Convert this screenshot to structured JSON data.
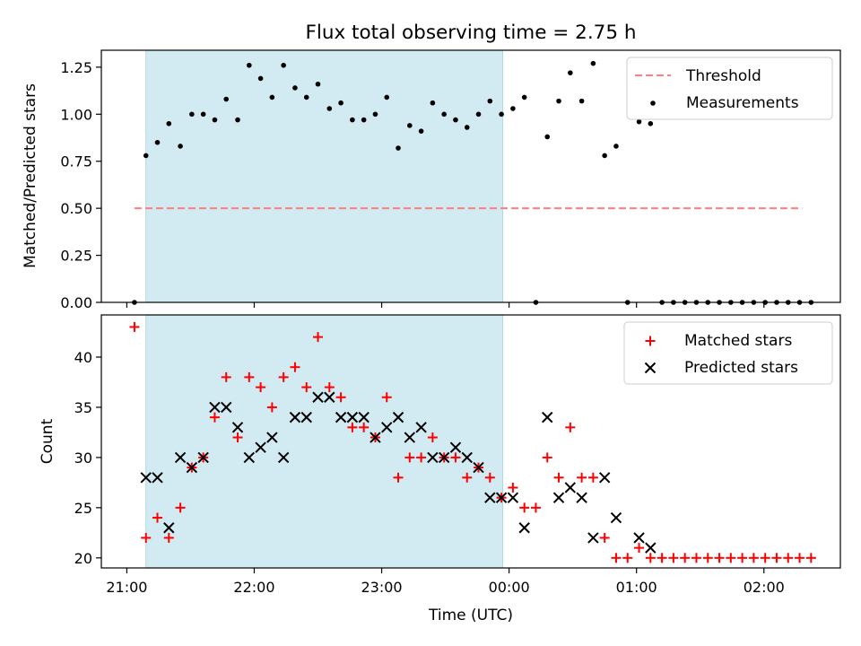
{
  "title": "Flux total observing time = 2.75 h",
  "colors": {
    "observing_span": "#add8e6",
    "threshold": "#ff7f7f",
    "measurements": "#000000",
    "matched": "#ff0000",
    "predicted": "#000000"
  },
  "chart_data": [
    {
      "type": "scatter",
      "title": "Flux total observing time = 2.75 h",
      "xlabel": "",
      "ylabel": "Matched/Predicted stars",
      "x_unit": "hours after 21:00 UTC",
      "xlim": [
        -0.2,
        5.6
      ],
      "ylim": [
        0,
        1.34
      ],
      "yticks": [
        0.0,
        0.25,
        0.5,
        0.75,
        1.0,
        1.25
      ],
      "ytick_labels": [
        "0.00",
        "0.25",
        "0.50",
        "0.75",
        "1.00",
        "1.25"
      ],
      "grid": false,
      "legend_position": "top-right",
      "shaded_span_hours": [
        0.15,
        2.95
      ],
      "threshold": {
        "name": "Threshold",
        "value": 0.5,
        "x_range_hours": [
          0.06,
          5.3
        ]
      },
      "series": [
        {
          "name": "Measurements",
          "points": [
            [
              0.06,
              0.0
            ],
            [
              0.15,
              0.78
            ],
            [
              0.24,
              0.85
            ],
            [
              0.33,
              0.95
            ],
            [
              0.42,
              0.83
            ],
            [
              0.51,
              1.0
            ],
            [
              0.6,
              1.0
            ],
            [
              0.69,
              0.97
            ],
            [
              0.78,
              1.08
            ],
            [
              0.87,
              0.97
            ],
            [
              0.96,
              1.26
            ],
            [
              1.05,
              1.19
            ],
            [
              1.14,
              1.09
            ],
            [
              1.23,
              1.26
            ],
            [
              1.32,
              1.14
            ],
            [
              1.41,
              1.09
            ],
            [
              1.5,
              1.16
            ],
            [
              1.59,
              1.03
            ],
            [
              1.68,
              1.06
            ],
            [
              1.77,
              0.97
            ],
            [
              1.86,
              0.97
            ],
            [
              1.95,
              1.0
            ],
            [
              2.04,
              1.09
            ],
            [
              2.13,
              0.82
            ],
            [
              2.22,
              0.94
            ],
            [
              2.31,
              0.91
            ],
            [
              2.4,
              1.06
            ],
            [
              2.49,
              1.0
            ],
            [
              2.58,
              0.97
            ],
            [
              2.67,
              0.93
            ],
            [
              2.76,
              1.0
            ],
            [
              2.85,
              1.07
            ],
            [
              2.94,
              1.0
            ],
            [
              3.03,
              1.03
            ],
            [
              3.12,
              1.09
            ],
            [
              3.21,
              0.0
            ],
            [
              3.3,
              0.88
            ],
            [
              3.39,
              1.07
            ],
            [
              3.48,
              1.22
            ],
            [
              3.57,
              1.07
            ],
            [
              3.66,
              1.27
            ],
            [
              3.75,
              0.78
            ],
            [
              3.84,
              0.83
            ],
            [
              3.93,
              0.0
            ],
            [
              4.02,
              0.96
            ],
            [
              4.11,
              0.95
            ],
            [
              4.2,
              0.0
            ],
            [
              4.29,
              0.0
            ],
            [
              4.38,
              0.0
            ],
            [
              4.47,
              0.0
            ],
            [
              4.56,
              0.0
            ],
            [
              4.65,
              0.0
            ],
            [
              4.74,
              0.0
            ],
            [
              4.83,
              0.0
            ],
            [
              4.92,
              0.0
            ],
            [
              5.01,
              0.0
            ],
            [
              5.1,
              0.0
            ],
            [
              5.19,
              0.0
            ],
            [
              5.28,
              0.0
            ],
            [
              5.37,
              0.0
            ]
          ]
        }
      ]
    },
    {
      "type": "scatter",
      "xlabel": "Time (UTC)",
      "ylabel": "Count",
      "x_unit": "hours after 21:00 UTC",
      "xlim": [
        -0.2,
        5.6
      ],
      "ylim": [
        19,
        44.2
      ],
      "xticks_hours": [
        0,
        1,
        2,
        3,
        4,
        5
      ],
      "xtick_labels": [
        "21:00",
        "22:00",
        "23:00",
        "00:00",
        "01:00",
        "02:00"
      ],
      "yticks": [
        20,
        25,
        30,
        35,
        40
      ],
      "ytick_labels": [
        "20",
        "25",
        "30",
        "35",
        "40"
      ],
      "grid": false,
      "legend_position": "top-right",
      "shaded_span_hours": [
        0.15,
        2.95
      ],
      "series": [
        {
          "name": "Matched stars",
          "marker": "+",
          "points": [
            [
              0.06,
              43
            ],
            [
              0.15,
              22
            ],
            [
              0.24,
              24
            ],
            [
              0.33,
              22
            ],
            [
              0.42,
              25
            ],
            [
              0.51,
              29
            ],
            [
              0.6,
              30
            ],
            [
              0.69,
              34
            ],
            [
              0.78,
              38
            ],
            [
              0.87,
              32
            ],
            [
              0.96,
              38
            ],
            [
              1.05,
              37
            ],
            [
              1.14,
              35
            ],
            [
              1.23,
              38
            ],
            [
              1.32,
              39
            ],
            [
              1.41,
              37
            ],
            [
              1.5,
              42
            ],
            [
              1.59,
              37
            ],
            [
              1.68,
              36
            ],
            [
              1.77,
              33
            ],
            [
              1.86,
              33
            ],
            [
              1.95,
              32
            ],
            [
              2.04,
              36
            ],
            [
              2.13,
              28
            ],
            [
              2.22,
              30
            ],
            [
              2.31,
              30
            ],
            [
              2.4,
              32
            ],
            [
              2.49,
              30
            ],
            [
              2.58,
              30
            ],
            [
              2.67,
              28
            ],
            [
              2.76,
              29
            ],
            [
              2.85,
              28
            ],
            [
              2.94,
              26
            ],
            [
              3.03,
              27
            ],
            [
              3.12,
              25
            ],
            [
              3.21,
              25
            ],
            [
              3.3,
              30
            ],
            [
              3.39,
              28
            ],
            [
              3.48,
              33
            ],
            [
              3.57,
              28
            ],
            [
              3.66,
              28
            ],
            [
              3.75,
              22
            ],
            [
              3.84,
              20
            ],
            [
              3.93,
              20
            ],
            [
              4.02,
              21
            ],
            [
              4.11,
              20
            ],
            [
              4.2,
              20
            ],
            [
              4.29,
              20
            ],
            [
              4.38,
              20
            ],
            [
              4.47,
              20
            ],
            [
              4.56,
              20
            ],
            [
              4.65,
              20
            ],
            [
              4.74,
              20
            ],
            [
              4.83,
              20
            ],
            [
              4.92,
              20
            ],
            [
              5.01,
              20
            ],
            [
              5.1,
              20
            ],
            [
              5.19,
              20
            ],
            [
              5.28,
              20
            ],
            [
              5.37,
              20
            ]
          ]
        },
        {
          "name": "Predicted stars",
          "marker": "x",
          "points": [
            [
              0.15,
              28
            ],
            [
              0.24,
              28
            ],
            [
              0.33,
              23
            ],
            [
              0.42,
              30
            ],
            [
              0.51,
              29
            ],
            [
              0.6,
              30
            ],
            [
              0.69,
              35
            ],
            [
              0.78,
              35
            ],
            [
              0.87,
              33
            ],
            [
              0.96,
              30
            ],
            [
              1.05,
              31
            ],
            [
              1.14,
              32
            ],
            [
              1.23,
              30
            ],
            [
              1.32,
              34
            ],
            [
              1.41,
              34
            ],
            [
              1.5,
              36
            ],
            [
              1.59,
              36
            ],
            [
              1.68,
              34
            ],
            [
              1.77,
              34
            ],
            [
              1.86,
              34
            ],
            [
              1.95,
              32
            ],
            [
              2.04,
              33
            ],
            [
              2.13,
              34
            ],
            [
              2.22,
              32
            ],
            [
              2.31,
              33
            ],
            [
              2.4,
              30
            ],
            [
              2.49,
              30
            ],
            [
              2.58,
              31
            ],
            [
              2.67,
              30
            ],
            [
              2.76,
              29
            ],
            [
              2.85,
              26
            ],
            [
              2.94,
              26
            ],
            [
              3.03,
              26
            ],
            [
              3.12,
              23
            ],
            [
              3.3,
              34
            ],
            [
              3.39,
              26
            ],
            [
              3.48,
              27
            ],
            [
              3.57,
              26
            ],
            [
              3.66,
              22
            ],
            [
              3.75,
              28
            ],
            [
              3.84,
              24
            ],
            [
              4.02,
              22
            ],
            [
              4.11,
              21
            ]
          ]
        }
      ]
    }
  ]
}
